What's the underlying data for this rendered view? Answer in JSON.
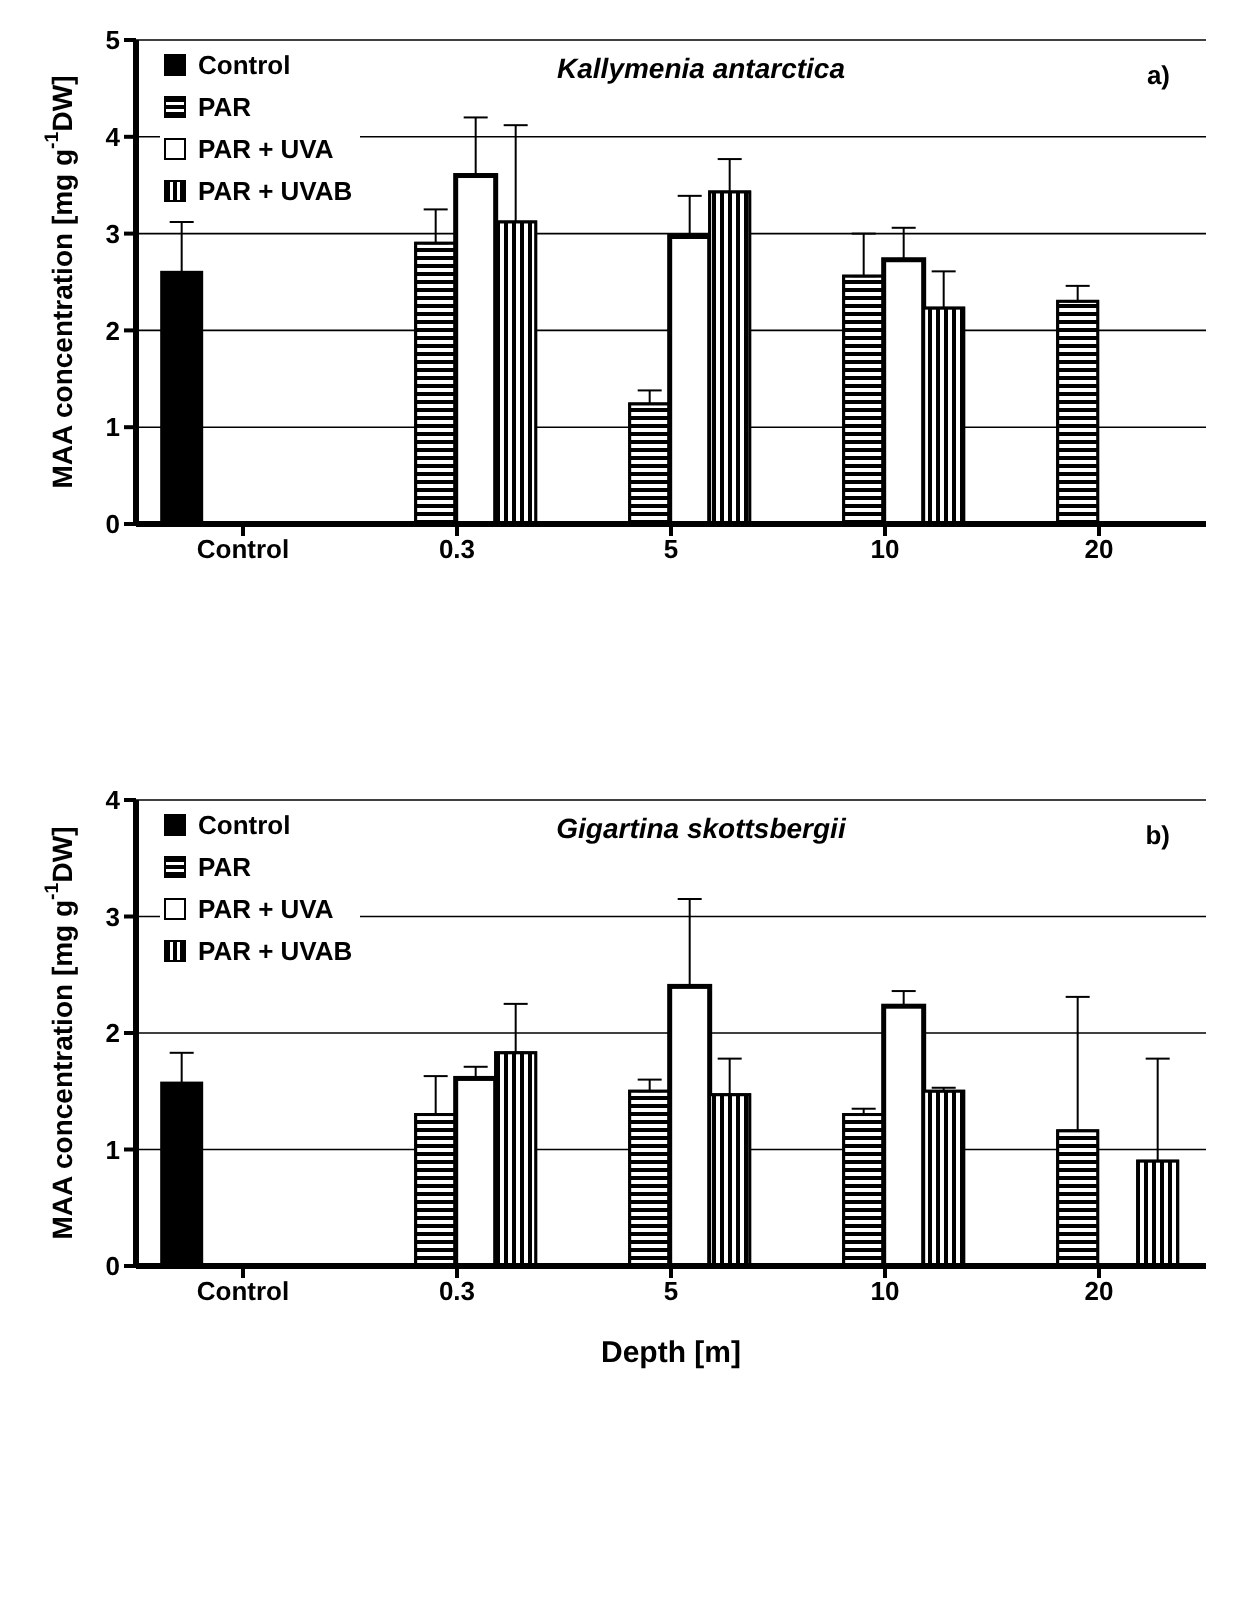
{
  "chart_data": [
    {
      "type": "bar",
      "title": "Kallymenia antarctica",
      "ylabel": "MAA concentration [mg g$^{-1}$DW]",
      "annotations": [
        "a)"
      ],
      "categories": [
        "Control",
        "0.3",
        "5",
        "10",
        "20"
      ],
      "ylim": [
        0,
        5
      ],
      "yticks": [
        0,
        1,
        2,
        3,
        4,
        5
      ],
      "grid": "y",
      "legend": "top left",
      "series": [
        {
          "name": "Control",
          "color": "#000000",
          "values": [
            2.6,
            null,
            null,
            null,
            null
          ],
          "errors": [
            [
              2.6,
              3.12
            ],
            null,
            null,
            null,
            null
          ]
        },
        {
          "name": "PAR",
          "color": "#000000",
          "values": [
            null,
            2.9,
            1.24,
            2.56,
            2.3
          ],
          "errors": [
            null,
            [
              2.9,
              3.25
            ],
            [
              1.24,
              1.38
            ],
            [
              2.56,
              3.0
            ],
            [
              2.3,
              2.46
            ]
          ]
        },
        {
          "name": "PAR + UVA",
          "color": "#ffffff",
          "values": [
            null,
            3.6,
            2.97,
            2.73,
            null
          ],
          "errors": [
            null,
            [
              3.6,
              4.2
            ],
            [
              2.97,
              3.39
            ],
            [
              2.73,
              3.06
            ],
            null
          ]
        },
        {
          "name": "PAR + UVAB",
          "color": "#000000",
          "values": [
            null,
            3.12,
            3.43,
            2.23,
            null
          ],
          "errors": [
            null,
            [
              3.12,
              4.12
            ],
            [
              3.43,
              3.77
            ],
            [
              2.23,
              2.61
            ],
            null
          ]
        }
      ]
    },
    {
      "type": "bar",
      "title": "Gigartina skottsbergii",
      "xlabel": "Depth [m]",
      "ylabel": "MAA concentration [mg g$^{-1}$DW]",
      "annotations": [
        "b)"
      ],
      "categories": [
        "Control",
        "0.3",
        "5",
        "10",
        "20"
      ],
      "ylim": [
        0,
        4
      ],
      "yticks": [
        0,
        1,
        2,
        3,
        4
      ],
      "grid": "y",
      "legend": "top left",
      "series": [
        {
          "name": "Control",
          "color": "#000000",
          "values": [
            1.57,
            null,
            null,
            null,
            null
          ],
          "errors": [
            [
              1.57,
              1.83
            ],
            null,
            null,
            null,
            null
          ]
        },
        {
          "name": "PAR",
          "color": "#000000",
          "values": [
            null,
            1.3,
            1.5,
            1.3,
            1.16
          ],
          "errors": [
            null,
            [
              1.3,
              1.63
            ],
            [
              1.5,
              1.6
            ],
            [
              1.3,
              1.35
            ],
            [
              1.16,
              2.31
            ]
          ]
        },
        {
          "name": "PAR + UVA",
          "color": "#ffffff",
          "values": [
            null,
            1.61,
            2.4,
            2.23,
            null
          ],
          "errors": [
            null,
            [
              1.61,
              1.71
            ],
            [
              2.4,
              3.15
            ],
            [
              2.23,
              2.36
            ],
            null
          ]
        },
        {
          "name": "PAR + UVAB",
          "color": "#000000",
          "values": [
            null,
            1.83,
            1.47,
            1.5,
            0.9
          ],
          "errors": [
            null,
            [
              1.83,
              2.25
            ],
            [
              1.47,
              1.78
            ],
            [
              1.5,
              1.53
            ],
            [
              0.9,
              1.78
            ]
          ]
        }
      ]
    }
  ]
}
